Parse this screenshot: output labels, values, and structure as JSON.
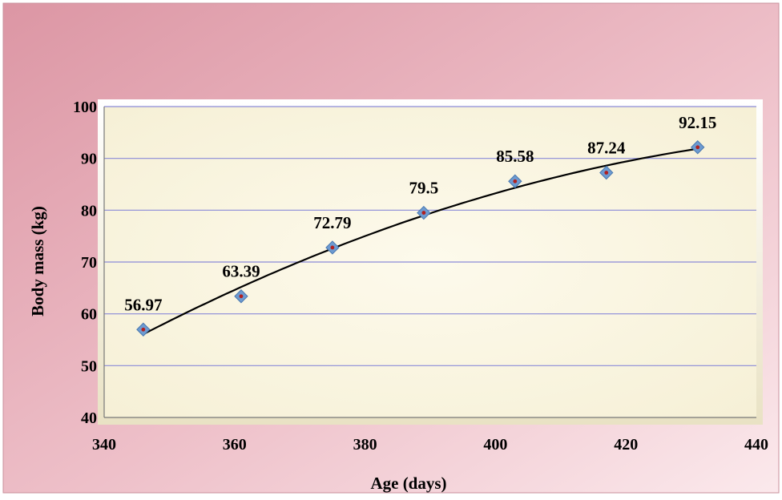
{
  "chart_data": {
    "type": "scatter",
    "title": "",
    "xlabel": "Age (days)",
    "ylabel": "Body mass (kg)",
    "xlim": [
      340,
      440
    ],
    "ylim": [
      40,
      100
    ],
    "x_ticks": [
      340,
      360,
      380,
      400,
      420,
      440
    ],
    "y_ticks": [
      40,
      50,
      60,
      70,
      80,
      90,
      100
    ],
    "grid": "horizontal",
    "trendline": "polynomial",
    "series": [
      {
        "x": [
          346,
          361,
          375,
          389,
          403,
          417,
          431
        ],
        "values": [
          56.97,
          63.39,
          72.79,
          79.5,
          85.58,
          87.24,
          92.15
        ],
        "data_labels": [
          "56.97",
          "63.39",
          "72.79",
          "79.5",
          "85.58",
          "87.24",
          "92.15"
        ]
      }
    ],
    "colors": {
      "marker_fill": "#6d9bd1",
      "marker_center": "#b02020",
      "trendline": "#000000",
      "gridline": "#8a8ad8",
      "plot_bg": "#fbf7e4",
      "frame_bg_start": "#e0a0ad",
      "frame_bg_end": "#f8e2e6"
    }
  }
}
